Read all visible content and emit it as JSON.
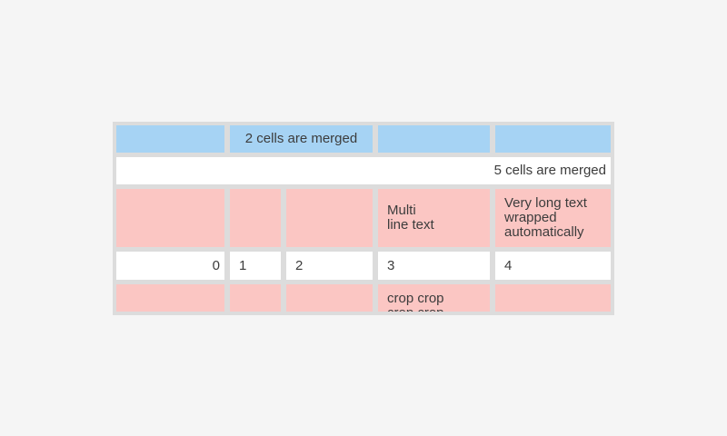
{
  "widget": {
    "type": "table",
    "colors": {
      "page_background": "#f5f5f5",
      "table_grid_background": "#dcdcdc",
      "cell_blue": "#a6d3f4",
      "cell_pink": "#fbc6c3",
      "cell_white": "#ffffff",
      "text": "#3c3c3c"
    },
    "rows": [
      {
        "cells": [
          {
            "text": ""
          },
          {
            "text": "2 cells are merged"
          },
          {
            "text": ""
          },
          {
            "text": ""
          }
        ]
      },
      {
        "cells": [
          {
            "text": "5 cells are merged"
          }
        ]
      },
      {
        "cells": [
          {
            "text": ""
          },
          {
            "text": ""
          },
          {
            "text": ""
          },
          {
            "text": "Multi\nline text"
          },
          {
            "text": "Very long text wrapped automatically"
          }
        ]
      },
      {
        "cells": [
          {
            "text": "0"
          },
          {
            "text": "1"
          },
          {
            "text": "2"
          },
          {
            "text": "3"
          },
          {
            "text": "4"
          }
        ]
      },
      {
        "cells": [
          {
            "text": ""
          },
          {
            "text": ""
          },
          {
            "text": ""
          },
          {
            "text": "crop crop\ncrop crop"
          },
          {
            "text": ""
          }
        ]
      }
    ]
  }
}
